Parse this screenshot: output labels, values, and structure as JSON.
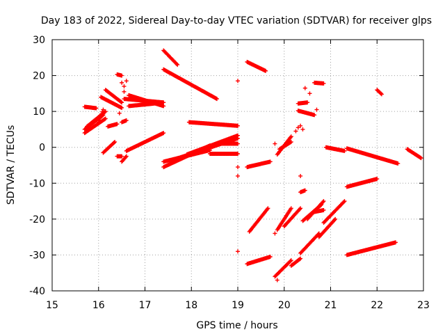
{
  "chart_data": {
    "type": "scatter",
    "title": "Day 183 of 2022, Sidereal Day-to-day VTEC variation (SDTVAR) for receiver glps",
    "xlabel": "GPS time / hours",
    "ylabel": "SDTVAR / TECUs",
    "xlim": [
      15,
      23
    ],
    "ylim": [
      -40,
      30
    ],
    "xticks": [
      15,
      16,
      17,
      18,
      19,
      20,
      21,
      22,
      23
    ],
    "yticks": [
      -40,
      -30,
      -20,
      -10,
      0,
      10,
      20,
      30
    ],
    "grid": true,
    "marker": "+",
    "color": "#ff0000",
    "segments": [
      {
        "x": [
          15.7,
          15.95
        ],
        "y": [
          11.3,
          10.9
        ]
      },
      {
        "x": [
          15.7,
          16.15
        ],
        "y": [
          4.0,
          8.0
        ]
      },
      {
        "x": [
          15.7,
          16.1
        ],
        "y": [
          5.0,
          9.0
        ]
      },
      {
        "x": [
          15.75,
          16.15
        ],
        "y": [
          5.8,
          10.0
        ]
      },
      {
        "x": [
          16.0,
          16.1
        ],
        "y": [
          7.0,
          10.5
        ]
      },
      {
        "x": [
          16.05,
          16.5
        ],
        "y": [
          14.0,
          11.0
        ]
      },
      {
        "x": [
          16.15,
          16.5
        ],
        "y": [
          16.0,
          12.5
        ]
      },
      {
        "x": [
          16.2,
          16.4
        ],
        "y": [
          5.8,
          6.5
        ]
      },
      {
        "x": [
          16.4,
          16.5
        ],
        "y": [
          20.3,
          20.0
        ]
      },
      {
        "x": [
          16.5,
          16.6
        ],
        "y": [
          7.0,
          7.5
        ]
      },
      {
        "x": [
          16.55,
          17.4
        ],
        "y": [
          13.5,
          12.5
        ]
      },
      {
        "x": [
          16.65,
          17.4
        ],
        "y": [
          14.5,
          11.5
        ]
      },
      {
        "x": [
          16.65,
          17.2
        ],
        "y": [
          11.5,
          12.2
        ]
      },
      {
        "x": [
          16.1,
          16.35
        ],
        "y": [
          -1.5,
          1.5
        ]
      },
      {
        "x": [
          16.4,
          16.5
        ],
        "y": [
          -2.5,
          -2.5
        ]
      },
      {
        "x": [
          16.5,
          16.6
        ],
        "y": [
          -4.0,
          -2.5
        ]
      },
      {
        "x": [
          16.6,
          17.4
        ],
        "y": [
          -1.0,
          4.0
        ]
      },
      {
        "x": [
          17.4,
          17.7
        ],
        "y": [
          27.0,
          23.0
        ]
      },
      {
        "x": [
          17.4,
          18.55
        ],
        "y": [
          21.7,
          13.5
        ]
      },
      {
        "x": [
          17.4,
          18.4
        ],
        "y": [
          -5.5,
          0.5
        ]
      },
      {
        "x": [
          17.4,
          18.4
        ],
        "y": [
          -4.0,
          -0.8
        ]
      },
      {
        "x": [
          17.6,
          19.0
        ],
        "y": [
          -3.5,
          2.5
        ]
      },
      {
        "x": [
          17.9,
          19.0
        ],
        "y": [
          -2.0,
          3.3
        ]
      },
      {
        "x": [
          18.4,
          19.0
        ],
        "y": [
          -1.8,
          -1.8
        ]
      },
      {
        "x": [
          18.6,
          19.0
        ],
        "y": [
          1.0,
          1.0
        ]
      },
      {
        "x": [
          17.95,
          19.0
        ],
        "y": [
          7.0,
          6.0
        ]
      },
      {
        "x": [
          19.2,
          19.6
        ],
        "y": [
          23.8,
          21.3
        ]
      },
      {
        "x": [
          19.2,
          19.7
        ],
        "y": [
          -5.5,
          -4.0
        ]
      },
      {
        "x": [
          19.25,
          19.65
        ],
        "y": [
          -23.5,
          -17.0
        ]
      },
      {
        "x": [
          19.2,
          19.7
        ],
        "y": [
          -32.5,
          -30.5
        ]
      },
      {
        "x": [
          19.8,
          20.15
        ],
        "y": [
          -36.0,
          -31.5
        ]
      },
      {
        "x": [
          19.85,
          20.15
        ],
        "y": [
          -23.0,
          -17.0
        ]
      },
      {
        "x": [
          19.85,
          20.15
        ],
        "y": [
          -2.0,
          3.0
        ]
      },
      {
        "x": [
          19.9,
          20.15
        ],
        "y": [
          -0.5,
          1.5
        ]
      },
      {
        "x": [
          20.0,
          20.35
        ],
        "y": [
          -22.0,
          -17.0
        ]
      },
      {
        "x": [
          20.15,
          20.35
        ],
        "y": [
          -33.0,
          -31.0
        ]
      },
      {
        "x": [
          20.3,
          20.5
        ],
        "y": [
          12.2,
          12.5
        ]
      },
      {
        "x": [
          20.3,
          20.65
        ],
        "y": [
          10.2,
          9.0
        ]
      },
      {
        "x": [
          20.35,
          20.45
        ],
        "y": [
          -12.5,
          -12.0
        ]
      },
      {
        "x": [
          20.35,
          20.75
        ],
        "y": [
          -29.5,
          -24.0
        ]
      },
      {
        "x": [
          20.4,
          20.8
        ],
        "y": [
          -20.5,
          -16.0
        ]
      },
      {
        "x": [
          20.5,
          20.85
        ],
        "y": [
          -20.0,
          -15.0
        ]
      },
      {
        "x": [
          20.65,
          20.85
        ],
        "y": [
          -18.0,
          -17.5
        ]
      },
      {
        "x": [
          20.65,
          20.85
        ],
        "y": [
          18.0,
          17.8
        ]
      },
      {
        "x": [
          20.75,
          21.1
        ],
        "y": [
          -25.0,
          -20.0
        ]
      },
      {
        "x": [
          20.85,
          21.3
        ],
        "y": [
          -21.0,
          -15.0
        ]
      },
      {
        "x": [
          20.9,
          21.3
        ],
        "y": [
          0.0,
          -1.0
        ]
      },
      {
        "x": [
          21.35,
          22.0
        ],
        "y": [
          -11.0,
          -8.8
        ]
      },
      {
        "x": [
          21.35,
          22.4
        ],
        "y": [
          -30.0,
          -26.5
        ]
      },
      {
        "x": [
          21.35,
          22.45
        ],
        "y": [
          -0.3,
          -4.5
        ]
      },
      {
        "x": [
          22.0,
          22.1
        ],
        "y": [
          16.0,
          14.8
        ]
      },
      {
        "x": [
          22.65,
          22.95
        ],
        "y": [
          -0.5,
          -3.0
        ]
      }
    ],
    "points": [
      {
        "x": 16.5,
        "y": 18.0
      },
      {
        "x": 16.55,
        "y": 17.0
      },
      {
        "x": 16.6,
        "y": 18.5
      },
      {
        "x": 16.55,
        "y": 15.5
      },
      {
        "x": 16.45,
        "y": 9.5
      },
      {
        "x": 19.0,
        "y": 18.5
      },
      {
        "x": 19.0,
        "y": -5.5
      },
      {
        "x": 19.0,
        "y": -8.0
      },
      {
        "x": 19.0,
        "y": -29.0
      },
      {
        "x": 19.8,
        "y": -24.0
      },
      {
        "x": 19.85,
        "y": -37.0
      },
      {
        "x": 19.8,
        "y": 1.0
      },
      {
        "x": 20.35,
        "y": -8.0
      },
      {
        "x": 20.55,
        "y": 15.0
      },
      {
        "x": 20.45,
        "y": 16.5
      },
      {
        "x": 20.7,
        "y": 10.5
      },
      {
        "x": 20.4,
        "y": 5.0
      },
      {
        "x": 20.3,
        "y": 5.5
      },
      {
        "x": 20.35,
        "y": 6.0
      },
      {
        "x": 20.25,
        "y": 4.5
      }
    ]
  }
}
